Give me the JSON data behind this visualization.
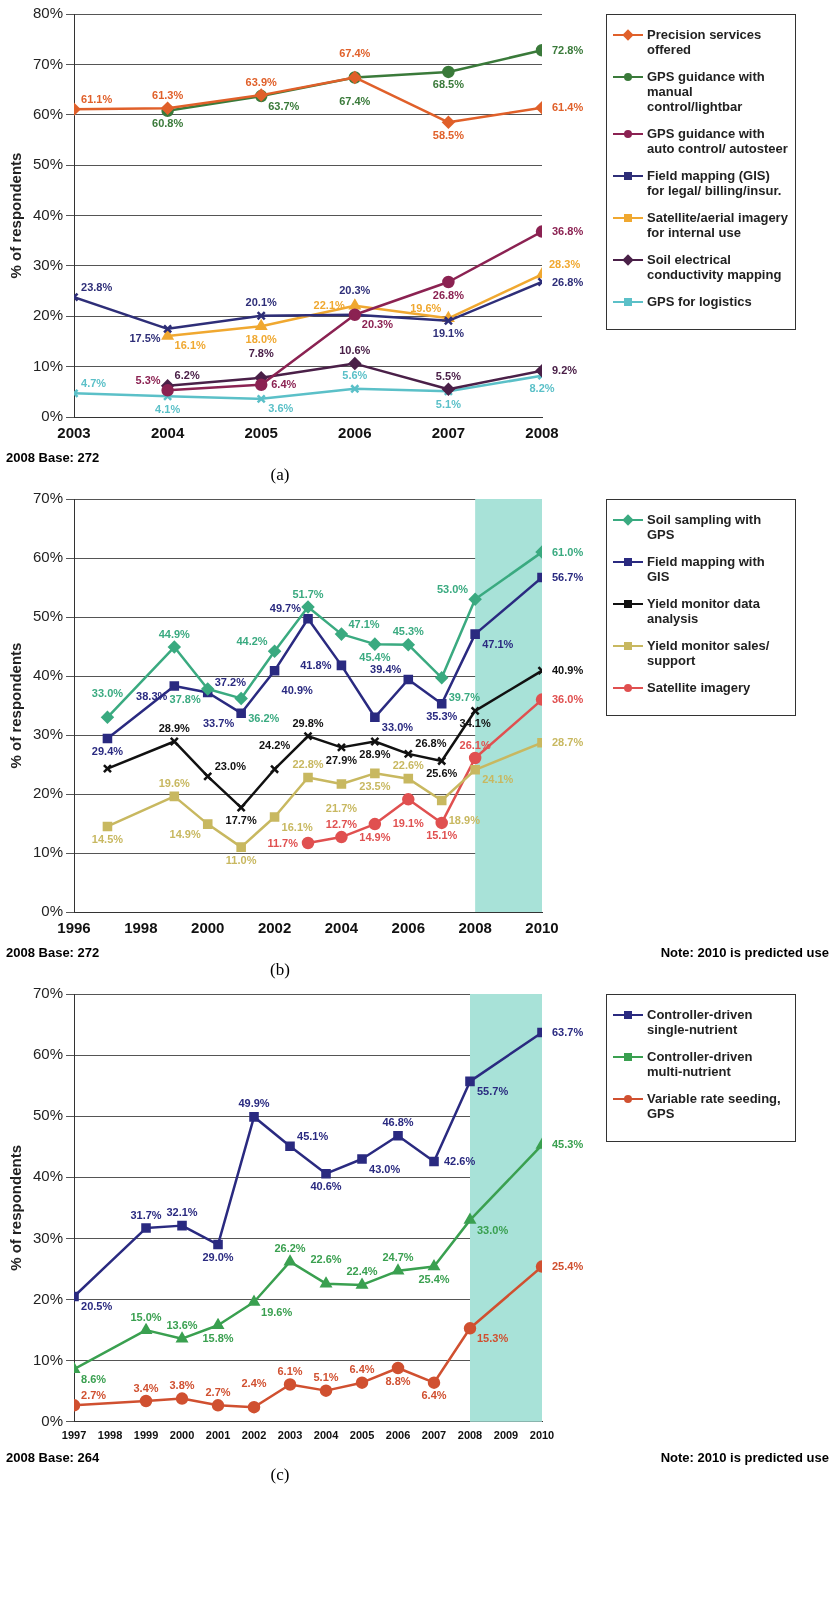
{
  "chart_data": [
    {
      "type": "line",
      "ylabel": "% of respondents",
      "x": [
        2003,
        2004,
        2005,
        2006,
        2007,
        2008
      ],
      "xlim": [
        2003,
        2008
      ],
      "xticks": [
        2003,
        2004,
        2005,
        2006,
        2007,
        2008
      ],
      "ylim": [
        0,
        80
      ],
      "yticks": [
        {
          "value": 0,
          "label": "0%"
        },
        {
          "value": 10,
          "label": "10%"
        },
        {
          "value": 20,
          "label": "20%"
        },
        {
          "value": 30,
          "label": "30%"
        },
        {
          "value": 40,
          "label": "40%"
        },
        {
          "value": 50,
          "label": "50%"
        },
        {
          "value": 60,
          "label": "60%"
        },
        {
          "value": 70,
          "label": "70%"
        },
        {
          "value": 80,
          "label": "80%"
        }
      ],
      "grid": "y",
      "legend": "right",
      "line_style": "solid",
      "annotations": [
        "2008 Base: 272",
        "(a)"
      ],
      "series": [
        {
          "name": "Precision services offered",
          "color": "#e0602a",
          "marker": "diamond",
          "values": [
            61.1,
            61.3,
            63.9,
            67.4,
            58.5,
            61.4
          ],
          "value_labels": [
            "61.1%",
            "61.3%",
            "63.9%",
            "67.4%",
            "58.5%",
            "61.4%"
          ]
        },
        {
          "name": "GPS guidance with manual control/lightbar",
          "color": "#3a7a3a",
          "marker": "circle",
          "values": [
            null,
            60.8,
            63.7,
            67.4,
            68.5,
            72.8
          ],
          "value_labels": [
            null,
            "60.8%",
            "63.7%",
            "67.4%",
            "68.5%",
            "72.8%"
          ]
        },
        {
          "name": "GPS guidance with auto control/ autosteer",
          "color": "#8b2252",
          "marker": "circle",
          "values": [
            null,
            5.3,
            6.4,
            20.3,
            26.8,
            36.8
          ],
          "value_labels": [
            null,
            "5.3%",
            "6.4%",
            "20.3%",
            "26.8%",
            "36.8%"
          ]
        },
        {
          "name": "Field mapping (GIS) for legal/ billing/insur.",
          "color": "#2e2e78",
          "marker": "cross",
          "values": [
            23.8,
            17.5,
            20.1,
            20.3,
            19.1,
            26.8
          ],
          "value_labels": [
            "23.8%",
            "17.5%",
            "20.1%",
            "20.3%",
            "19.1%",
            "26.8%"
          ]
        },
        {
          "name": "Satellite/aerial imagery for internal use",
          "color": "#f0a830",
          "marker": "triangle",
          "values": [
            null,
            16.1,
            18.0,
            22.1,
            19.6,
            28.3
          ],
          "value_labels": [
            null,
            "16.1%",
            "18.0%",
            "22.1%",
            "19.6%",
            "28.3%"
          ]
        },
        {
          "name": "Soil electrical conductivity mapping",
          "color": "#4a2048",
          "marker": "diamond",
          "values": [
            null,
            6.2,
            7.8,
            10.6,
            5.5,
            9.2
          ],
          "value_labels": [
            null,
            "6.2%",
            "7.8%",
            "10.6%",
            "5.5%",
            "9.2%"
          ]
        },
        {
          "name": "GPS for logistics",
          "color": "#5bc0c8",
          "marker": "cross",
          "values": [
            4.7,
            4.1,
            3.6,
            5.6,
            5.1,
            8.2
          ],
          "value_labels": [
            "4.7%",
            "4.1%",
            "3.6%",
            "5.6%",
            "5.1%",
            "8.2%"
          ]
        }
      ]
    },
    {
      "type": "line",
      "ylabel": "% of respondents",
      "x": [
        1997,
        1999,
        2000,
        2001,
        2002,
        2003,
        2004,
        2005,
        2006,
        2007,
        2008,
        2010
      ],
      "xlim": [
        1996,
        2010
      ],
      "xticks": [
        1996,
        1998,
        2000,
        2002,
        2004,
        2006,
        2008,
        2010
      ],
      "ylim": [
        0,
        70
      ],
      "yticks": [
        {
          "value": 0,
          "label": "0%"
        },
        {
          "value": 10,
          "label": "10%"
        },
        {
          "value": 20,
          "label": "20%"
        },
        {
          "value": 30,
          "label": "30%"
        },
        {
          "value": 40,
          "label": "40%"
        },
        {
          "value": 50,
          "label": "50%"
        },
        {
          "value": 60,
          "label": "60%"
        },
        {
          "value": 70,
          "label": "70%"
        }
      ],
      "grid": "y",
      "legend": "right",
      "line_style": "solid",
      "bands": [
        {
          "axis": "x",
          "from": 2008,
          "to": 2010,
          "color": "#a8e2d8"
        }
      ],
      "annotations": [
        "2008 Base: 272",
        "Note: 2010 is predicted use",
        "(b)"
      ],
      "series": [
        {
          "name": "Soil sampling with GPS",
          "color": "#3aaa80",
          "marker": "diamond",
          "values": [
            33.0,
            44.9,
            37.8,
            36.2,
            44.2,
            51.7,
            47.1,
            45.4,
            45.3,
            39.7,
            53.0,
            61.0
          ],
          "value_labels": [
            "33.0%",
            "44.9%",
            "37.8%",
            "36.2%",
            "44.2%",
            "51.7%",
            "47.1%",
            "45.4%",
            "45.3%",
            "39.7%",
            "53.0%",
            "61.0%"
          ]
        },
        {
          "name": "Field mapping with GIS",
          "color": "#2a2a80",
          "marker": "square",
          "values": [
            29.4,
            38.3,
            37.2,
            33.7,
            40.9,
            49.7,
            41.8,
            33.0,
            39.4,
            35.3,
            47.1,
            56.7
          ],
          "value_labels": [
            "29.4%",
            "38.3%",
            "37.2%",
            "33.7%",
            "40.9%",
            "49.7%",
            "41.8%",
            "33.0%",
            "39.4%",
            "35.3%",
            "47.1%",
            "56.7%"
          ]
        },
        {
          "name": "Yield monitor data analysis",
          "color": "#111111",
          "marker": "cross",
          "values": [
            24.3,
            28.9,
            23.0,
            17.7,
            24.2,
            29.8,
            27.9,
            28.9,
            26.8,
            25.6,
            34.1,
            40.9
          ],
          "value_labels": [
            null,
            "28.9%",
            "23.0%",
            "17.7%",
            "24.2%",
            "29.8%",
            "27.9%",
            "28.9%",
            "26.8%",
            "25.6%",
            "34.1%",
            "40.9%"
          ]
        },
        {
          "name": "Yield monitor sales/ support",
          "color": "#c8b860",
          "marker": "square",
          "values": [
            14.5,
            19.6,
            14.9,
            11.0,
            16.1,
            22.8,
            21.7,
            23.5,
            22.6,
            18.9,
            24.1,
            28.7
          ],
          "value_labels": [
            "14.5%",
            "19.6%",
            "14.9%",
            "11.0%",
            "16.1%",
            "22.8%",
            "21.7%",
            "23.5%",
            "22.6%",
            "18.9%",
            "24.1%",
            "28.7%"
          ]
        },
        {
          "name": "Satellite imagery",
          "color": "#e05050",
          "marker": "circle",
          "values": [
            null,
            null,
            null,
            null,
            null,
            11.7,
            12.7,
            14.9,
            19.1,
            15.1,
            26.1,
            36.0
          ],
          "value_labels": [
            null,
            null,
            null,
            null,
            null,
            "11.7%",
            "12.7%",
            "14.9%",
            "19.1%",
            "15.1%",
            "26.1%",
            "36.0%"
          ]
        }
      ]
    },
    {
      "type": "line",
      "ylabel": "% of respondents",
      "x": [
        1997,
        1999,
        2000,
        2001,
        2002,
        2003,
        2004,
        2005,
        2006,
        2007,
        2008,
        2010
      ],
      "xlim": [
        1997,
        2010
      ],
      "xticks": [
        1997,
        1998,
        1999,
        2000,
        2001,
        2002,
        2003,
        2004,
        2005,
        2006,
        2007,
        2008,
        2009,
        2010
      ],
      "ylim": [
        0,
        70
      ],
      "yticks": [
        {
          "value": 0,
          "label": "0%"
        },
        {
          "value": 10,
          "label": "10%"
        },
        {
          "value": 20,
          "label": "20%"
        },
        {
          "value": 30,
          "label": "30%"
        },
        {
          "value": 40,
          "label": "40%"
        },
        {
          "value": 50,
          "label": "50%"
        },
        {
          "value": 60,
          "label": "60%"
        },
        {
          "value": 70,
          "label": "70%"
        }
      ],
      "grid": "y",
      "legend": "right",
      "line_style": "solid",
      "bands": [
        {
          "axis": "x",
          "from": 2008,
          "to": 2010,
          "color": "#a8e2d8"
        }
      ],
      "annotations": [
        "2008 Base: 264",
        "Note: 2010 is predicted use",
        "(c)"
      ],
      "series": [
        {
          "name": "Controller-driven single-nutrient",
          "color": "#2a2a80",
          "marker": "square",
          "values": [
            20.5,
            31.7,
            32.1,
            29.0,
            49.9,
            45.1,
            40.6,
            43.0,
            46.8,
            42.6,
            55.7,
            63.7
          ],
          "value_labels": [
            "20.5%",
            "31.7%",
            "32.1%",
            "29.0%",
            "49.9%",
            "45.1%",
            "40.6%",
            "43.0%",
            "46.8%",
            "42.6%",
            "55.7%",
            "63.7%"
          ]
        },
        {
          "name": "Controller-driven multi-nutrient",
          "color": "#3aa050",
          "marker": "triangle",
          "values": [
            8.6,
            15.0,
            13.6,
            15.8,
            19.6,
            26.2,
            22.6,
            22.4,
            24.7,
            25.4,
            33.0,
            45.3
          ],
          "value_labels": [
            "8.6%",
            "15.0%",
            "13.6%",
            "15.8%",
            "19.6%",
            "26.2%",
            "22.6%",
            "22.4%",
            "24.7%",
            "25.4%",
            "33.0%",
            "45.3%"
          ]
        },
        {
          "name": "Variable rate seeding, GPS",
          "color": "#d05030",
          "marker": "circle",
          "values": [
            2.7,
            3.4,
            3.8,
            2.7,
            2.4,
            6.1,
            5.1,
            6.4,
            8.8,
            6.4,
            15.3,
            25.4
          ],
          "value_labels": [
            "2.7%",
            "3.4%",
            "3.8%",
            "2.7%",
            "2.4%",
            "6.1%",
            "5.1%",
            "6.4%",
            "8.8%",
            "6.4%",
            "15.3%",
            "25.4%"
          ]
        }
      ]
    }
  ]
}
